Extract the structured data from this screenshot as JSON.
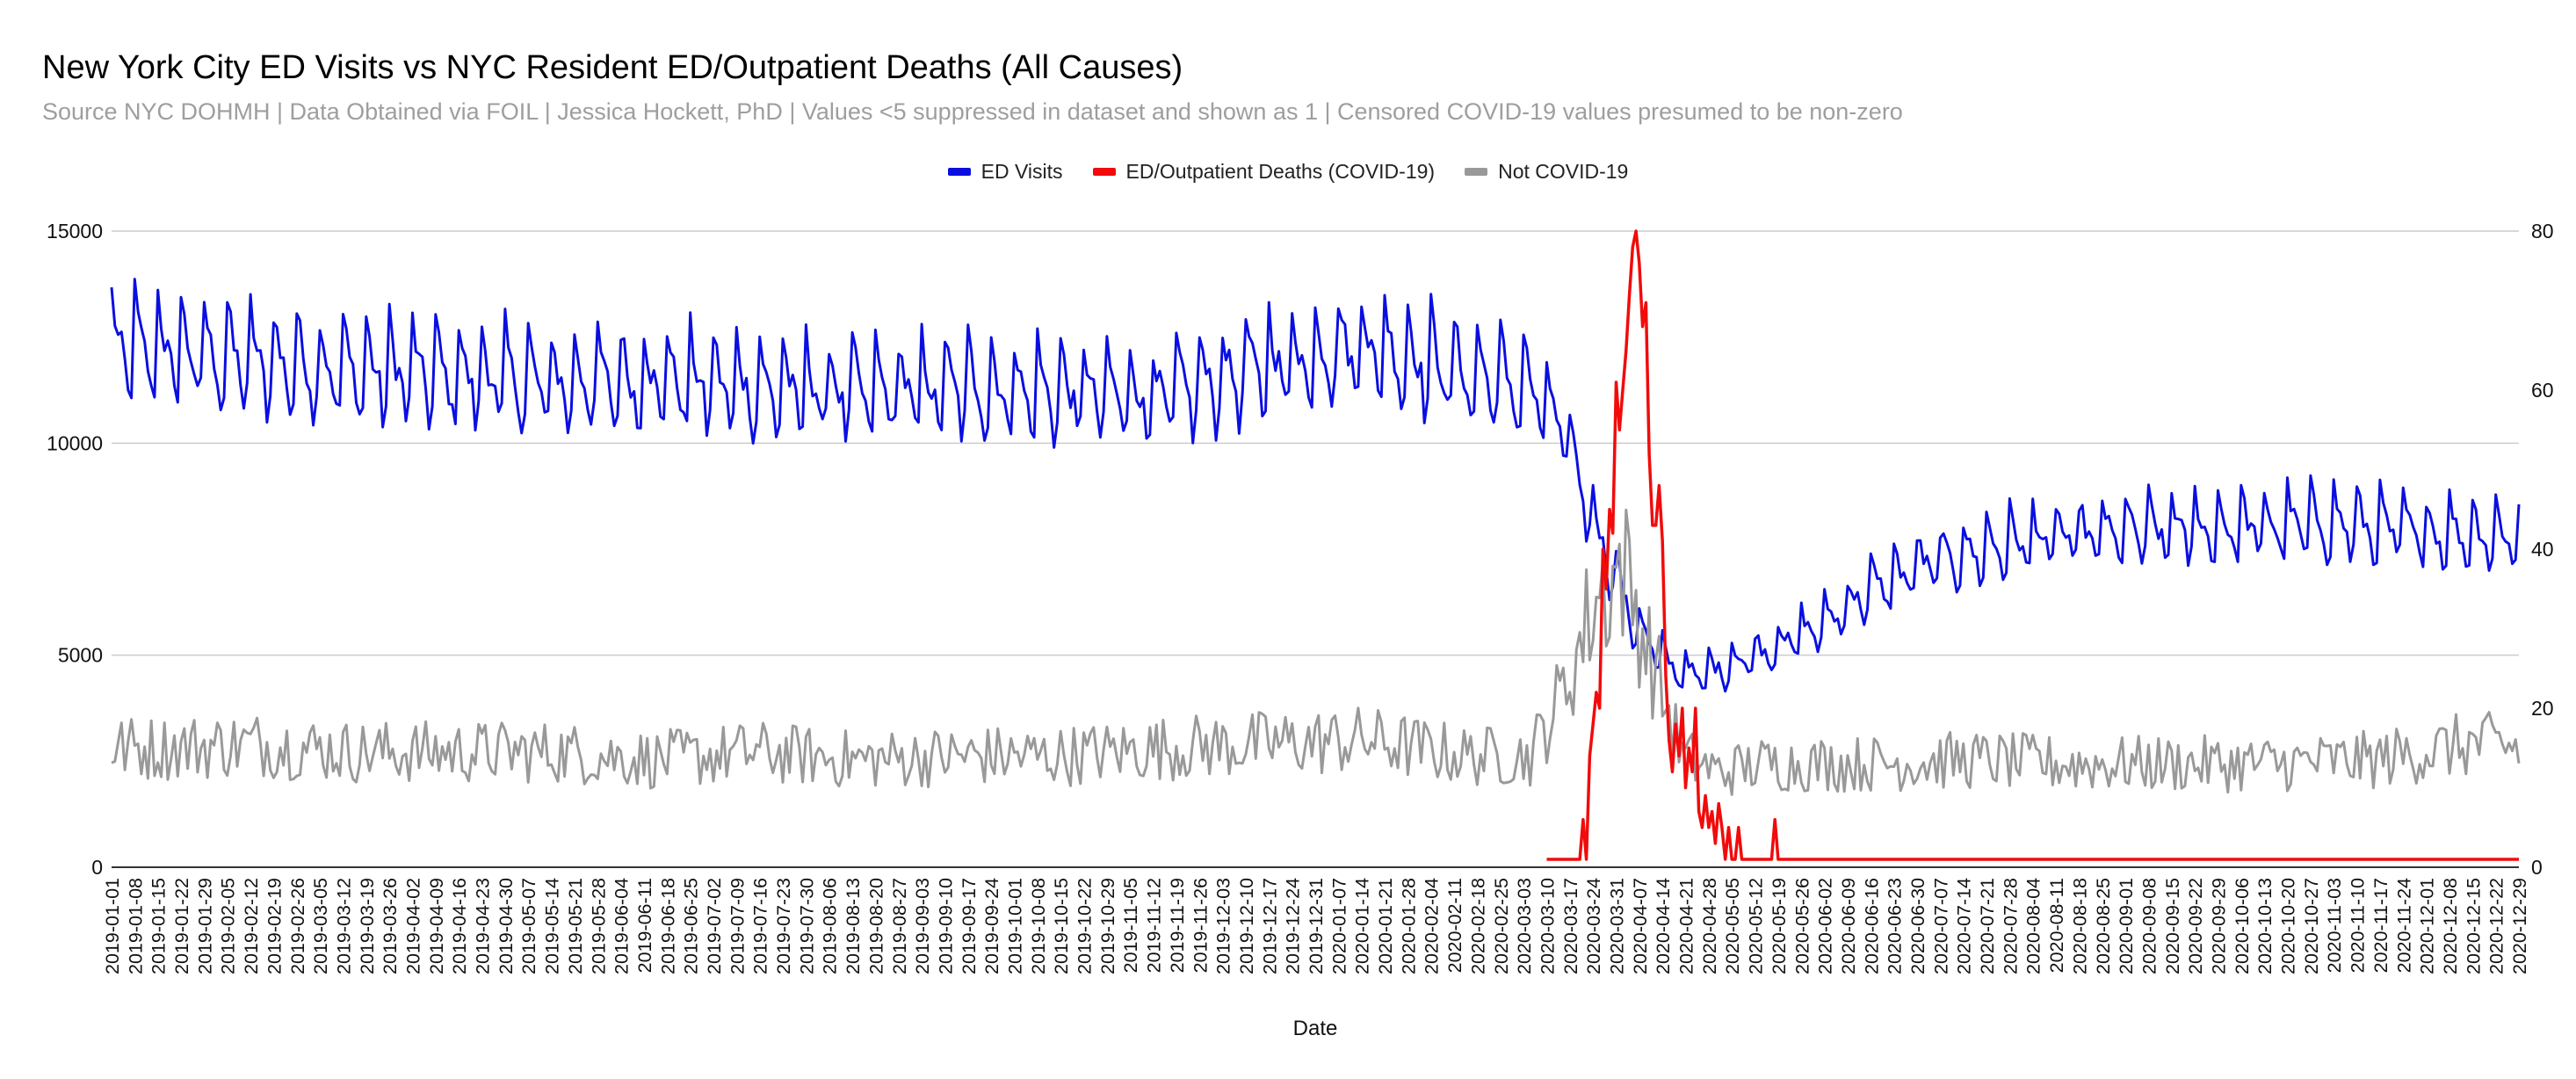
{
  "chart_data": {
    "type": "line",
    "title": "New York City ED Visits vs NYC Resident ED/Outpatient Deaths (All Causes)",
    "subtitle": "Source NYC DOHMH  | Data Obtained via FOIL | Jessica Hockett, PhD | Values <5 suppressed in dataset and shown as 1 | Censored COVID-19 values presumed to be non-zero",
    "xlabel": "Date",
    "x_start": "2019-01-01",
    "x_end": "2020-12-29",
    "x_tick_interval_days": 7,
    "left_axis": {
      "ylim": [
        0,
        15000
      ],
      "ticks": [
        0,
        5000,
        10000,
        15000
      ]
    },
    "right_axis": {
      "ylim": [
        0,
        80
      ],
      "ticks": [
        0,
        20,
        40,
        60,
        80
      ]
    },
    "grid": true,
    "legend_position": "top-center",
    "series": [
      {
        "name": "ED Visits",
        "color": "#0a0fe0",
        "axis": "left",
        "monthly_mean": [
          [
            "2019-01-15",
            12200
          ],
          [
            "2019-02-15",
            11900
          ],
          [
            "2019-03-15",
            11700
          ],
          [
            "2019-04-15",
            11600
          ],
          [
            "2019-05-15",
            11400
          ],
          [
            "2019-06-15",
            11500
          ],
          [
            "2019-07-15",
            11300
          ],
          [
            "2019-08-15",
            11200
          ],
          [
            "2019-09-15",
            11300
          ],
          [
            "2019-10-15",
            11200
          ],
          [
            "2019-11-15",
            11100
          ],
          [
            "2019-12-15",
            11800
          ],
          [
            "2020-01-15",
            12300
          ],
          [
            "2020-02-15",
            11600
          ],
          [
            "2020-03-05",
            11300
          ],
          [
            "2020-03-15",
            10300
          ],
          [
            "2020-03-25",
            8000
          ],
          [
            "2020-04-05",
            5800
          ],
          [
            "2020-04-15",
            4800
          ],
          [
            "2020-04-25",
            4500
          ],
          [
            "2020-05-15",
            5100
          ],
          [
            "2020-06-01",
            5700
          ],
          [
            "2020-06-15",
            6500
          ],
          [
            "2020-07-01",
            7100
          ],
          [
            "2020-08-01",
            7700
          ],
          [
            "2020-09-01",
            7900
          ],
          [
            "2020-10-01",
            8000
          ],
          [
            "2020-11-01",
            8100
          ],
          [
            "2020-12-01",
            7900
          ],
          [
            "2020-12-29",
            7800
          ]
        ]
      },
      {
        "name": "ED/Outpatient Deaths (COVID-19)",
        "color": "#f10b0b",
        "axis": "right",
        "points": [
          [
            "2020-03-10",
            1
          ],
          [
            "2020-03-20",
            1
          ],
          [
            "2020-03-21",
            6
          ],
          [
            "2020-03-22",
            1
          ],
          [
            "2020-03-23",
            14
          ],
          [
            "2020-03-24",
            18
          ],
          [
            "2020-03-25",
            22
          ],
          [
            "2020-03-26",
            20
          ],
          [
            "2020-03-27",
            40
          ],
          [
            "2020-03-28",
            35
          ],
          [
            "2020-03-29",
            45
          ],
          [
            "2020-03-30",
            42
          ],
          [
            "2020-03-31",
            61
          ],
          [
            "2020-04-01",
            55
          ],
          [
            "2020-04-02",
            60
          ],
          [
            "2020-04-03",
            65
          ],
          [
            "2020-04-04",
            72
          ],
          [
            "2020-04-05",
            78
          ],
          [
            "2020-04-06",
            80
          ],
          [
            "2020-04-07",
            76
          ],
          [
            "2020-04-08",
            68
          ],
          [
            "2020-04-09",
            71
          ],
          [
            "2020-04-10",
            52
          ],
          [
            "2020-04-11",
            43
          ],
          [
            "2020-04-12",
            43
          ],
          [
            "2020-04-13",
            48
          ],
          [
            "2020-04-14",
            41
          ],
          [
            "2020-04-15",
            24
          ],
          [
            "2020-04-16",
            16
          ],
          [
            "2020-04-17",
            12
          ],
          [
            "2020-04-18",
            18
          ],
          [
            "2020-04-19",
            14
          ],
          [
            "2020-04-20",
            20
          ],
          [
            "2020-04-21",
            10
          ],
          [
            "2020-04-22",
            15
          ],
          [
            "2020-04-23",
            12
          ],
          [
            "2020-04-24",
            20
          ],
          [
            "2020-04-25",
            7
          ],
          [
            "2020-04-26",
            5
          ],
          [
            "2020-04-27",
            9
          ],
          [
            "2020-04-28",
            5
          ],
          [
            "2020-04-29",
            7
          ],
          [
            "2020-04-30",
            3
          ],
          [
            "2020-05-01",
            8
          ],
          [
            "2020-05-02",
            5
          ],
          [
            "2020-05-03",
            1
          ],
          [
            "2020-05-04",
            5
          ],
          [
            "2020-05-05",
            1
          ],
          [
            "2020-05-06",
            1
          ],
          [
            "2020-05-07",
            5
          ],
          [
            "2020-05-08",
            1
          ],
          [
            "2020-05-17",
            1
          ],
          [
            "2020-05-18",
            6
          ],
          [
            "2020-05-19",
            1
          ],
          [
            "2020-12-29",
            1
          ]
        ]
      },
      {
        "name": "Not COVID-19",
        "color": "#999999",
        "axis": "right",
        "monthly_mean": [
          [
            "2019-01-15",
            15
          ],
          [
            "2019-02-15",
            15.5
          ],
          [
            "2019-03-15",
            14.5
          ],
          [
            "2019-04-15",
            14.5
          ],
          [
            "2019-05-15",
            14.5
          ],
          [
            "2019-06-15",
            13.5
          ],
          [
            "2019-07-15",
            14.5
          ],
          [
            "2019-08-15",
            13.5
          ],
          [
            "2019-09-15",
            14
          ],
          [
            "2019-10-15",
            14
          ],
          [
            "2019-11-15",
            15
          ],
          [
            "2019-12-15",
            15.5
          ],
          [
            "2020-01-15",
            16
          ],
          [
            "2020-02-15",
            14
          ],
          [
            "2020-03-05",
            14
          ],
          [
            "2020-03-15",
            22
          ],
          [
            "2020-03-25",
            34
          ],
          [
            "2020-04-02",
            38
          ],
          [
            "2020-04-10",
            27
          ],
          [
            "2020-04-20",
            14
          ],
          [
            "2020-05-01",
            12
          ],
          [
            "2020-05-15",
            13
          ],
          [
            "2020-06-15",
            13
          ],
          [
            "2020-07-15",
            13.5
          ],
          [
            "2020-08-15",
            13
          ],
          [
            "2020-09-15",
            13
          ],
          [
            "2020-10-15",
            13
          ],
          [
            "2020-11-15",
            13.5
          ],
          [
            "2020-12-15",
            15.5
          ],
          [
            "2020-12-29",
            15
          ]
        ]
      }
    ]
  }
}
